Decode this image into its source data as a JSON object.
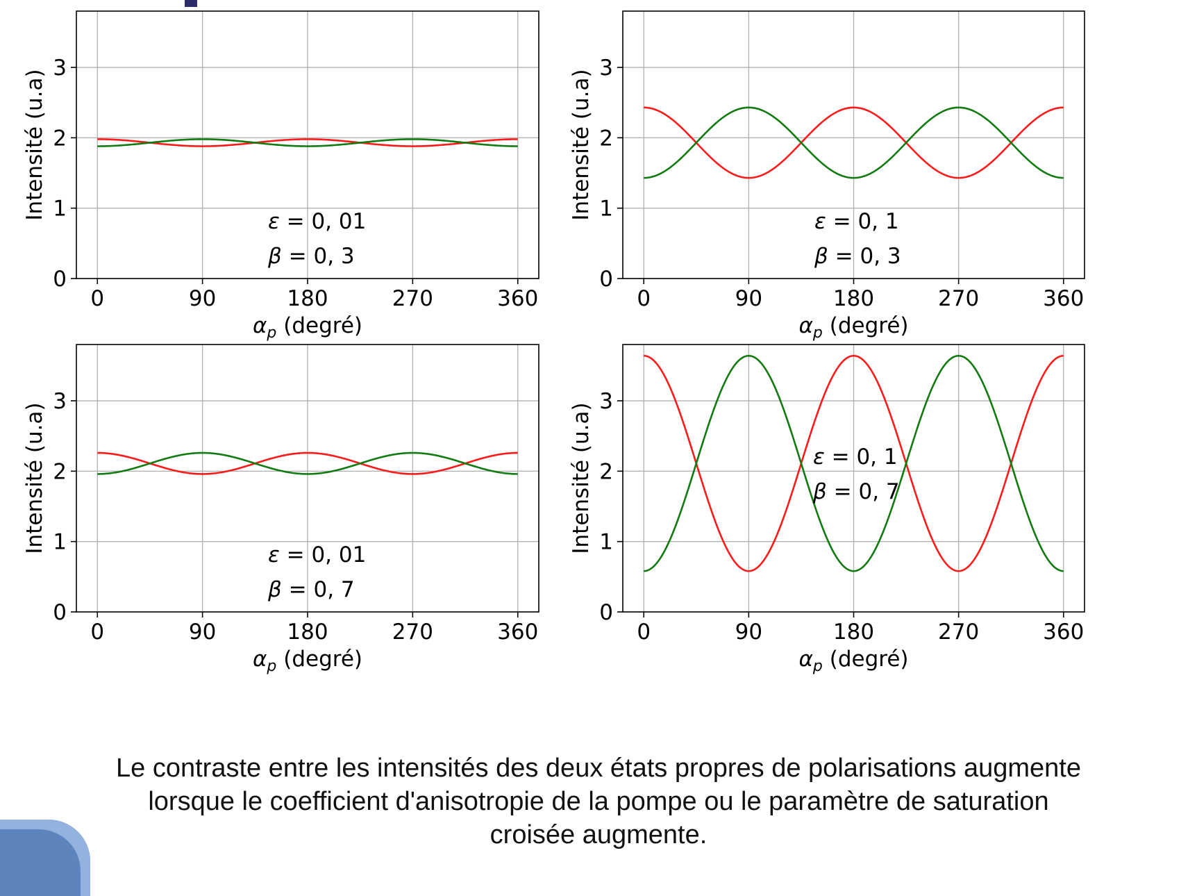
{
  "caption": {
    "lines": [
      "Le contraste entre les intensités des deux états propres de polarisations augmente",
      "lorsque le coefficient d'anisotropie de la pompe ou le paramètre de saturation",
      "croisée augmente."
    ]
  },
  "colors": {
    "red_series": "#ff1a1a",
    "green_series": "#117a11",
    "grid": "#b0b0b0",
    "axes": "#000000",
    "slide_accent": "#5d84bd"
  },
  "chart_data": [
    {
      "type": "line",
      "position": "top-left",
      "xlabel": "α_p (degré)",
      "ylabel": "Intensité (u.a)",
      "xticks": [
        0,
        90,
        180,
        270,
        360
      ],
      "yticks": [
        0,
        1,
        2,
        3
      ],
      "xlim": [
        -18,
        378
      ],
      "ylim": [
        0,
        3.8
      ],
      "grid": true,
      "annotation": {
        "epsilon": "0, 01",
        "beta": "0, 3"
      },
      "series": [
        {
          "color": "red",
          "max": 1.98,
          "min": 1.88,
          "peak_at": [
            0,
            180,
            360
          ]
        },
        {
          "color": "green",
          "max": 1.98,
          "min": 1.88,
          "peak_at": [
            90,
            270
          ]
        }
      ]
    },
    {
      "type": "line",
      "position": "top-right",
      "xlabel": "α_p (degré)",
      "ylabel": "Intensité (u.a)",
      "xticks": [
        0,
        90,
        180,
        270,
        360
      ],
      "yticks": [
        0,
        1,
        2,
        3
      ],
      "xlim": [
        -18,
        378
      ],
      "ylim": [
        0,
        3.8
      ],
      "grid": true,
      "annotation": {
        "epsilon": "0, 1",
        "beta": "0, 3"
      },
      "series": [
        {
          "color": "red",
          "max": 2.43,
          "min": 1.43,
          "peak_at": [
            0,
            180,
            360
          ]
        },
        {
          "color": "green",
          "max": 2.43,
          "min": 1.43,
          "peak_at": [
            90,
            270
          ]
        }
      ]
    },
    {
      "type": "line",
      "position": "bottom-left",
      "xlabel": "α_p (degré)",
      "ylabel": "Intensité (u.a)",
      "xticks": [
        0,
        90,
        180,
        270,
        360
      ],
      "yticks": [
        0,
        1,
        2,
        3
      ],
      "xlim": [
        -18,
        378
      ],
      "ylim": [
        0,
        3.8
      ],
      "grid": true,
      "annotation": {
        "epsilon": "0, 01",
        "beta": "0, 7"
      },
      "series": [
        {
          "color": "red",
          "max": 2.26,
          "min": 1.96,
          "peak_at": [
            0,
            180,
            360
          ]
        },
        {
          "color": "green",
          "max": 2.26,
          "min": 1.96,
          "peak_at": [
            90,
            270
          ]
        }
      ]
    },
    {
      "type": "line",
      "position": "bottom-right",
      "xlabel": "α_p (degré)",
      "ylabel": "Intensité (u.a)",
      "xticks": [
        0,
        90,
        180,
        270,
        360
      ],
      "yticks": [
        0,
        1,
        2,
        3
      ],
      "xlim": [
        -18,
        378
      ],
      "ylim": [
        0,
        3.8
      ],
      "grid": true,
      "annotation": {
        "epsilon": "0, 1",
        "beta": "0, 7"
      },
      "series": [
        {
          "color": "red",
          "max": 3.64,
          "min": 0.58,
          "peak_at": [
            0,
            180,
            360
          ]
        },
        {
          "color": "green",
          "max": 3.64,
          "min": 0.58,
          "peak_at": [
            90,
            270
          ]
        }
      ]
    }
  ]
}
